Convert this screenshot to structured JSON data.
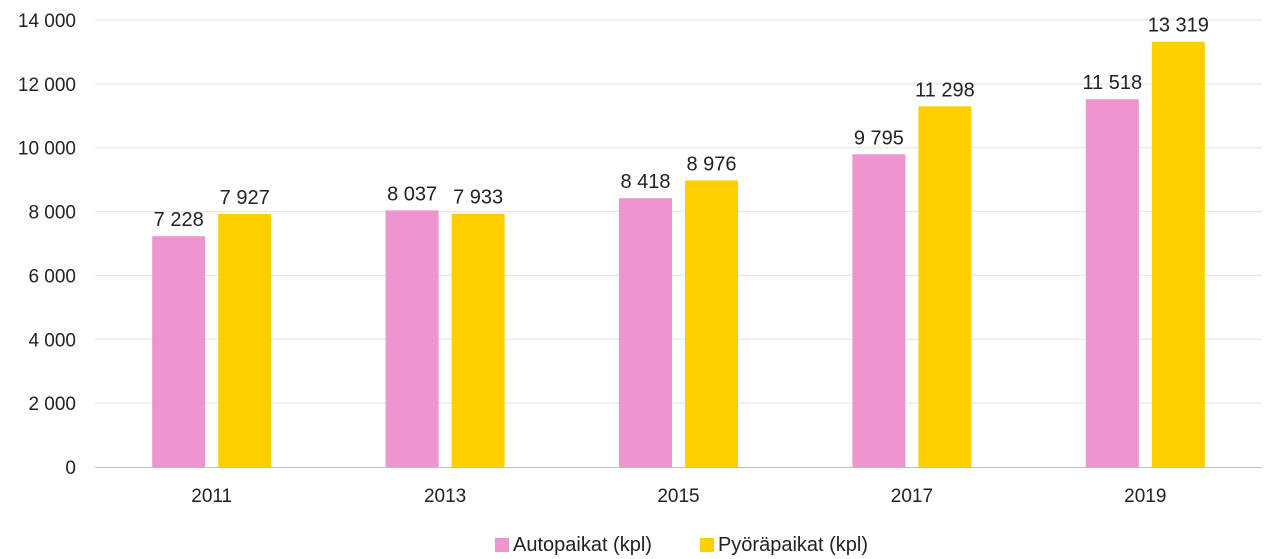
{
  "chart_data": {
    "type": "bar",
    "categories": [
      "2011",
      "2013",
      "2015",
      "2017",
      "2019"
    ],
    "series": [
      {
        "name": "Autopaikat (kpl)",
        "color": "#EE94CE",
        "values": [
          7228,
          8037,
          8418,
          9795,
          11518
        ],
        "labels": [
          "7 228",
          "8 037",
          "8 418",
          "9 795",
          "11 518"
        ]
      },
      {
        "name": "Pyöräpaikat (kpl)",
        "color": "#FFCF00",
        "values": [
          7927,
          7933,
          8976,
          11298,
          13319
        ],
        "labels": [
          "7 927",
          "7 933",
          "8 976",
          "11 298",
          "13 319"
        ]
      }
    ],
    "ylim": [
      0,
      14000
    ],
    "yticks": [
      0,
      2000,
      4000,
      6000,
      8000,
      10000,
      12000,
      14000
    ],
    "ytick_labels": [
      "0",
      "2 000",
      "4 000",
      "6 000",
      "8 000",
      "10 000",
      "12 000",
      "14 000"
    ],
    "grid": true,
    "legend_position": "bottom-center",
    "title": "",
    "xlabel": "",
    "ylabel": ""
  }
}
